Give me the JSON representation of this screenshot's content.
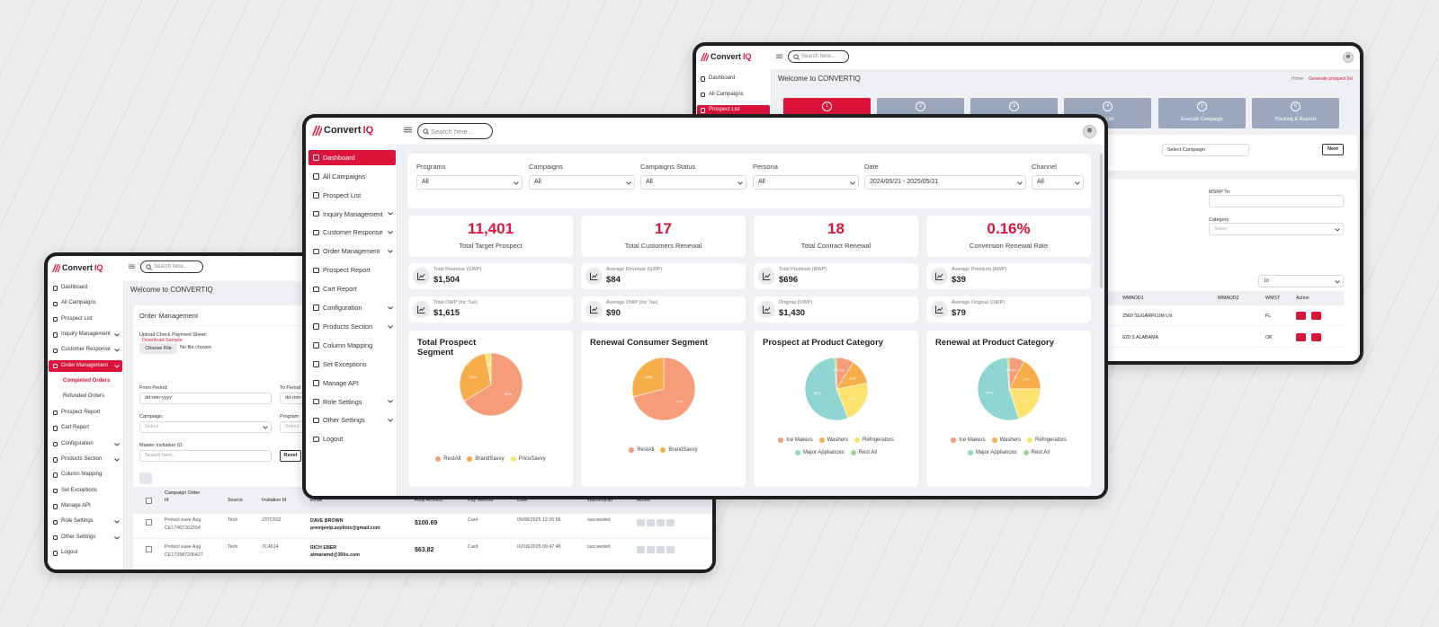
{
  "main": {
    "brand": {
      "name": "Convert",
      "suffix": "IQ"
    },
    "search": "Search here...",
    "sidebar": [
      {
        "label": "Dashboard",
        "active": true,
        "expandable": false
      },
      {
        "label": "All Campaigns",
        "active": false,
        "expandable": false
      },
      {
        "label": "Prospect List",
        "active": false,
        "expandable": false
      },
      {
        "label": "Inquiry Management",
        "active": false,
        "expandable": true
      },
      {
        "label": "Customer Response",
        "active": false,
        "expandable": true
      },
      {
        "label": "Order Management",
        "active": false,
        "expandable": true
      },
      {
        "label": "Prospect Report",
        "active": false,
        "expandable": false
      },
      {
        "label": "Cart Report",
        "active": false,
        "expandable": false
      },
      {
        "label": "Configuration",
        "active": false,
        "expandable": true
      },
      {
        "label": "Products Section",
        "active": false,
        "expandable": true
      },
      {
        "label": "Column Mapping",
        "active": false,
        "expandable": false
      },
      {
        "label": "Set Exceptions",
        "active": false,
        "expandable": false
      },
      {
        "label": "Manage API",
        "active": false,
        "expandable": false
      },
      {
        "label": "Role Settings",
        "active": false,
        "expandable": true
      },
      {
        "label": "Other Settings",
        "active": false,
        "expandable": true
      },
      {
        "label": "Logout",
        "active": false,
        "expandable": false
      }
    ],
    "filters": [
      {
        "label": "Programs",
        "value": "All"
      },
      {
        "label": "Campaigns",
        "value": "All"
      },
      {
        "label": "Campaigns Status",
        "value": "All"
      },
      {
        "label": "Persona",
        "value": "All"
      },
      {
        "label": "Date",
        "value": "2024/05/21 - 2025/05/21"
      },
      {
        "label": "Channel",
        "value": "All"
      }
    ],
    "kpis": [
      {
        "value": "11,401",
        "label": "Total Target Prospect"
      },
      {
        "value": "17",
        "label": "Total Customers Renewal"
      },
      {
        "value": "18",
        "label": "Total Contract Renewal"
      },
      {
        "value": "0.16%",
        "label": "Conversion Renewal Rate"
      }
    ],
    "stats": [
      {
        "label": "Total Revenue (GWP)",
        "value": "$1,504"
      },
      {
        "label": "Average Revenue (GWP)",
        "value": "$84"
      },
      {
        "label": "Total Premium (NWP)",
        "value": "$696"
      },
      {
        "label": "Average Premium (AWP)",
        "value": "$39"
      },
      {
        "label": "Total OWP (Inc Tax)",
        "value": "$1,615"
      },
      {
        "label": "Average OWP (Inc Tax)",
        "value": "$90"
      },
      {
        "label": "Original (OWP)",
        "value": "$1,430"
      },
      {
        "label": "Average Original (OWP)",
        "value": "$79"
      }
    ]
  },
  "chart_data": [
    {
      "type": "pie",
      "title": "Total Prospect Segment",
      "categories": [
        "RestAll",
        "BrandSavvy",
        "PriceSavvy"
      ],
      "values": [
        66,
        31,
        3
      ],
      "value_labels": [
        "66%",
        "31%",
        "3%"
      ],
      "colors": [
        "#f79c78",
        "#f6ad4a",
        "#fde26f"
      ]
    },
    {
      "type": "pie",
      "title": "Renewal Consumer Segment",
      "categories": [
        "RestAll",
        "BrandSavvy"
      ],
      "values": [
        71,
        29
      ],
      "value_labels": [
        "71%",
        "29%"
      ],
      "colors": [
        "#f79c78",
        "#f6ad4a"
      ]
    },
    {
      "type": "pie",
      "title": "Prospect at Product Category",
      "categories": [
        "Ice Makers",
        "Washers",
        "Refrigerators",
        "Major Appliances",
        "Rest All"
      ],
      "values": [
        9,
        13,
        22,
        55,
        1
      ],
      "value_labels": [
        "9%",
        "13%",
        "22%",
        "55%",
        "1%"
      ],
      "colors": [
        "#f79c78",
        "#f6ad4a",
        "#fde26f",
        "#8fd6d2",
        "#9ad58c"
      ]
    },
    {
      "type": "pie",
      "title": "Renewal at Product Category",
      "categories": [
        "Ice Makers",
        "Washers",
        "Refrigerators",
        "Major Appliances",
        "Rest All"
      ],
      "values": [
        8,
        17,
        20,
        54,
        1
      ],
      "value_labels": [
        "8%",
        "17%",
        "20%",
        "54%",
        "1%"
      ],
      "colors": [
        "#f79c78",
        "#f6ad4a",
        "#fde26f",
        "#8fd6d2",
        "#9ad58c"
      ]
    }
  ],
  "left": {
    "brand": {
      "name": "Convert",
      "suffix": "IQ"
    },
    "search": "Search here...",
    "sidebar": [
      {
        "label": "Dashboard",
        "active": false,
        "expandable": false,
        "sub": false
      },
      {
        "label": "All Campaigns",
        "active": false,
        "expandable": false,
        "sub": false
      },
      {
        "label": "Prospect List",
        "active": false,
        "expandable": false,
        "sub": false
      },
      {
        "label": "Inquiry Management",
        "active": false,
        "expandable": true,
        "sub": false
      },
      {
        "label": "Customer Response",
        "active": false,
        "expandable": true,
        "sub": false
      },
      {
        "label": "Order Management",
        "active": true,
        "expandable": true,
        "sub": false
      },
      {
        "label": "Completed Orders",
        "active": true,
        "expandable": false,
        "sub": true
      },
      {
        "label": "Refunded Orders",
        "active": false,
        "expandable": false,
        "sub": true
      },
      {
        "label": "Prospect Report",
        "active": false,
        "expandable": false,
        "sub": false
      },
      {
        "label": "Cart Report",
        "active": false,
        "expandable": false,
        "sub": false
      },
      {
        "label": "Configuration",
        "active": false,
        "expandable": true,
        "sub": false
      },
      {
        "label": "Products Section",
        "active": false,
        "expandable": true,
        "sub": false
      },
      {
        "label": "Column Mapping",
        "active": false,
        "expandable": false,
        "sub": false
      },
      {
        "label": "Set Exceptions",
        "active": false,
        "expandable": false,
        "sub": false
      },
      {
        "label": "Manage API",
        "active": false,
        "expandable": false,
        "sub": false
      },
      {
        "label": "Role Settings",
        "active": false,
        "expandable": true,
        "sub": false
      },
      {
        "label": "Other Settings",
        "active": false,
        "expandable": true,
        "sub": false
      },
      {
        "label": "Logout",
        "active": false,
        "expandable": false,
        "sub": false
      }
    ],
    "welcome": "Welcome to CONVERTIQ",
    "card_title": "Order Management",
    "upload_label": "Upload Check Payment Sheet:",
    "upload_link": "Download Sample",
    "choose_file": "Choose File",
    "no_file": "No file chosen",
    "from_label": "From Period:",
    "from_placeholder": "dd-mm-yyyy",
    "to_label": "To Period",
    "to_placeholder": "dd-mm-yyyy",
    "campaign_label": "Campaign:",
    "campaign_placeholder": "Select",
    "program_label": "Program",
    "program_placeholder": "Select",
    "master_label": "Master Invitation ID:",
    "master_placeholder": "Search here...",
    "reset": "Reset",
    "table": {
      "headers": [
        "Campaign Order Id",
        "Source",
        "Invitation Id",
        "Email",
        "Final Amount",
        "Pay Method",
        "Date",
        "WarrantyNo",
        "Action"
      ],
      "rows": [
        {
          "campaign": "Protect ease Aug",
          "order": "CE17467261554",
          "source": "Tech",
          "invitation": "237C502",
          "name": "DAVE BROWN",
          "email": "premjeetp.zeplinix@gmail.com",
          "amount": "$100.69",
          "method": "Card",
          "date": "05/08/2025 12:26:56",
          "status": "succeeded"
        },
        {
          "campaign": "Protect ease Aug",
          "order": "CE17398720642​7",
          "source": "Tech",
          "invitation": "7C4614",
          "name": "RICH EBER",
          "email": "atmaramd@30lio.com",
          "amount": "$63.82",
          "method": "Card",
          "date": "02/18/2025 09:47:46",
          "status": "succeeded"
        }
      ]
    }
  },
  "right": {
    "brand": {
      "name": "Convert",
      "suffix": "IQ"
    },
    "search": "Search here...",
    "sidebar": [
      {
        "label": "Dashboard",
        "active": false
      },
      {
        "label": "All Campaigns",
        "active": false
      },
      {
        "label": "Prospect List",
        "active": true
      }
    ],
    "welcome": "Welcome to CONVERTIQ",
    "breadcrumb": {
      "home": "Home",
      "current": "Generate prospect list"
    },
    "steps": [
      {
        "number": "1",
        "label": "",
        "active": true
      },
      {
        "number": "2",
        "label": "",
        "active": false
      },
      {
        "number": "3",
        "label": "",
        "active": false
      },
      {
        "number": "4",
        "label": "e List",
        "active": false
      },
      {
        "number": "5",
        "label": "Execute Campaign",
        "active": false
      },
      {
        "number": "6",
        "label": "Tracking & Reports",
        "active": false
      }
    ],
    "select_campaign": "Select Campaign",
    "next": "Next",
    "msrp_to": "MSRP To:",
    "category": "Category",
    "category_placeholder": "Select",
    "page_size": "10",
    "table": {
      "headers": [
        "WMADD1",
        "WMADD2",
        "WMST",
        "Action"
      ],
      "rows": [
        {
          "address": "2560 SUGARPLUM LN",
          "state": "FL"
        },
        {
          "address": "620 S ALABAMA",
          "state": "OK"
        }
      ]
    }
  }
}
